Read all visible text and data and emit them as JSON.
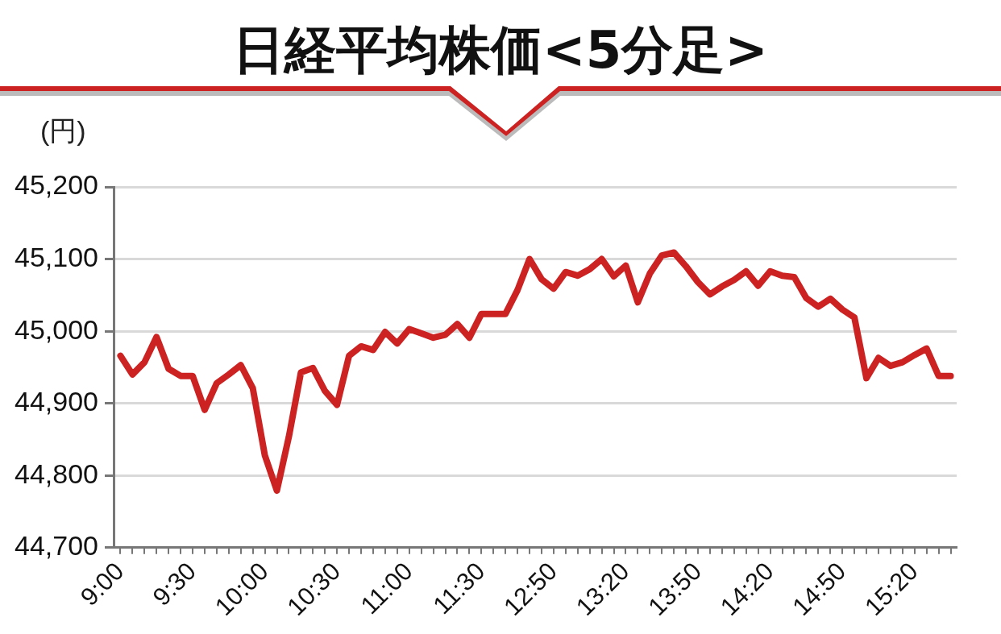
{
  "chart_data": {
    "type": "line",
    "title": "日経平均株価<5分足>",
    "ylabel": "(円)",
    "categories": [
      "9:00",
      null,
      null,
      null,
      null,
      null,
      "9:30",
      null,
      null,
      null,
      null,
      null,
      "10:00",
      null,
      null,
      null,
      null,
      null,
      "10:30",
      null,
      null,
      null,
      null,
      null,
      "11:00",
      null,
      null,
      null,
      null,
      null,
      "11:30",
      null,
      null,
      null,
      null,
      null,
      "12:50",
      null,
      null,
      null,
      null,
      null,
      "13:20",
      null,
      null,
      null,
      null,
      null,
      "13:50",
      null,
      null,
      null,
      null,
      null,
      "14:20",
      null,
      null,
      null,
      null,
      null,
      "14:50",
      null,
      null,
      null,
      null,
      null,
      "15:20",
      null,
      null,
      null
    ],
    "series": [
      {
        "color": "#cc2222",
        "values": [
          44966,
          44940,
          44957,
          44992,
          44948,
          44938,
          44938,
          44891,
          44928,
          44940,
          44953,
          44921,
          44828,
          44779,
          44854,
          44943,
          44949,
          44917,
          44898,
          44966,
          44979,
          44974,
          44999,
          44983,
          45003,
          44997,
          44991,
          44995,
          45010,
          44991,
          45024,
          45024,
          45024,
          45057,
          45100,
          45072,
          45059,
          45082,
          45077,
          45086,
          45100,
          45076,
          45091,
          45040,
          45080,
          45105,
          45109,
          45090,
          45068,
          45051,
          45062,
          45071,
          45083,
          45063,
          45083,
          45077,
          45075,
          45046,
          45034,
          45045,
          45030,
          45019,
          44935,
          44963,
          44952,
          44957,
          44967,
          44976,
          44938,
          44938
        ]
      }
    ],
    "ylim": [
      44700,
      45200
    ],
    "yticks": [
      {
        "value": 44700,
        "label": "44,700"
      },
      {
        "value": 44800,
        "label": "44,800"
      },
      {
        "value": 44900,
        "label": "44,900"
      },
      {
        "value": 45000,
        "label": "45,000"
      },
      {
        "value": 45100,
        "label": "45,100"
      },
      {
        "value": 45200,
        "label": "45,200"
      }
    ],
    "grid": "y",
    "marker": "none"
  }
}
